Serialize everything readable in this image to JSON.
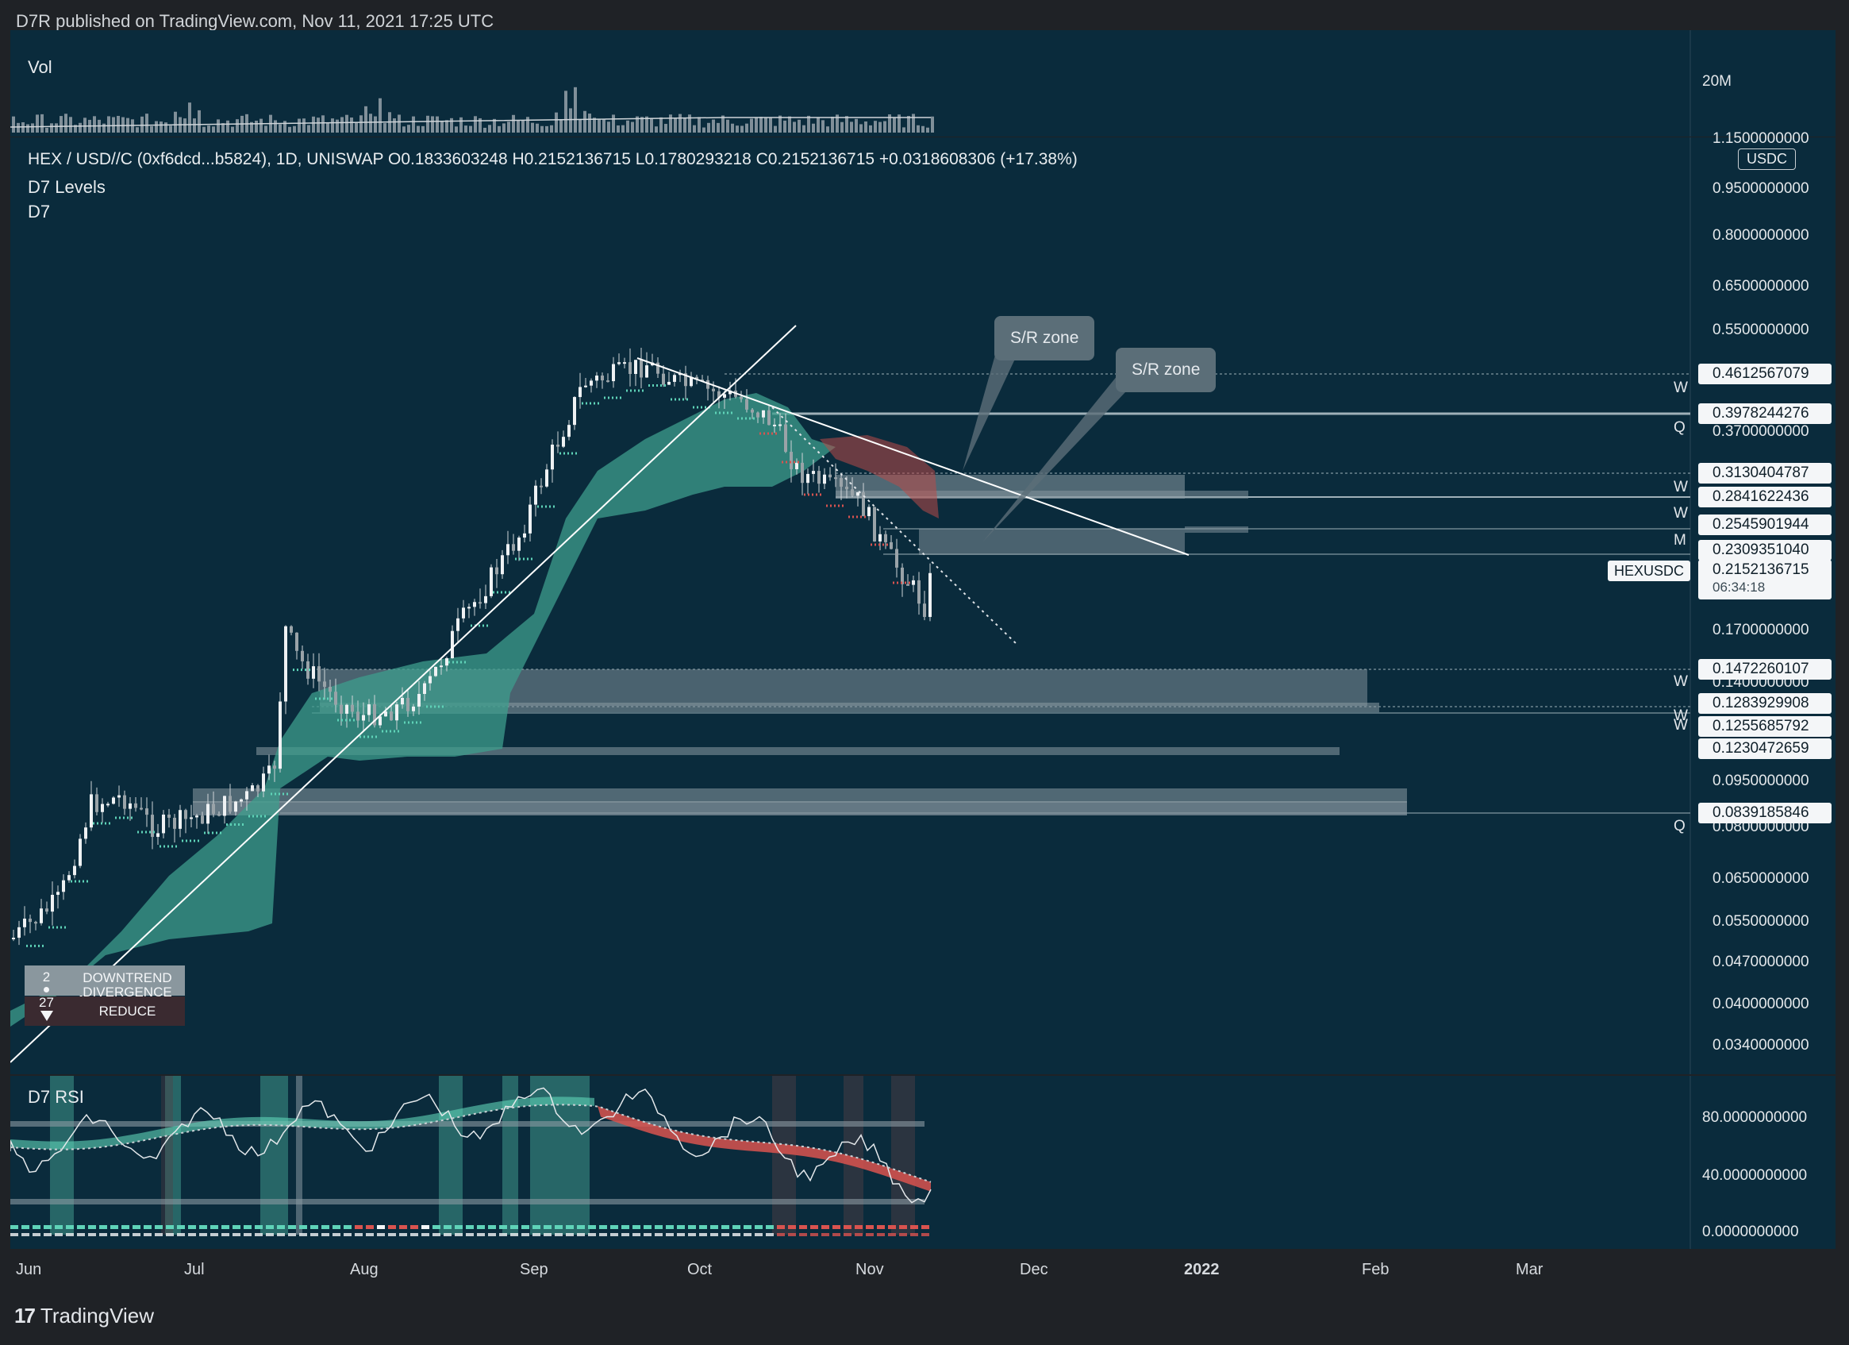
{
  "header": {
    "published": "D7R published on TradingView.com, Nov 11, 2021 17:25 UTC"
  },
  "volume_panel": {
    "title": "Vol",
    "scale_label": "20M"
  },
  "main": {
    "symbol_line": "HEX / USD//C (0xf6dcd...b5824), 1D, UNISWAP  O0.1833603248  H0.2152136715  L0.1780293218  C0.2152136715  +0.0318608306 (+17.38%)",
    "indicator_1": "D7 Levels",
    "indicator_2": "D7",
    "currency_badge": "USDC",
    "last_price": "0.2152136715",
    "countdown": "06:34:18",
    "ticker_badge": "HEXUSDC",
    "sr_zone_1": "S/R zone",
    "sr_zone_2": "S/R zone",
    "signal": {
      "count_top": "2",
      "count_bottom": "27",
      "label_top": "DOWNTREND DIVERGENCE",
      "label_bottom": "REDUCE"
    }
  },
  "rsi_panel": {
    "title": "D7 RSI"
  },
  "footer": {
    "brand": "TradingView"
  },
  "colors": {
    "panel_bg": "#0a2b3c",
    "bull": "#5fd3b8",
    "bear": "#d9534f",
    "cloud": "#3d9e8c",
    "zone": "#8a9aa2"
  },
  "chart_data": {
    "type": "candlestick",
    "x_ticks": [
      "Jun",
      "Jul",
      "Aug",
      "Sep",
      "Oct",
      "Nov",
      "Dec",
      "2022",
      "Feb",
      "Mar"
    ],
    "y_axis_labels": [
      "1.1500000000",
      "0.9500000000",
      "0.8000000000",
      "0.6500000000",
      "0.5500000000",
      "0.3700000000",
      "0.1700000000",
      "0.1400000000",
      "0.0950000000",
      "0.0800000000",
      "0.0650000000",
      "0.0550000000",
      "0.0470000000",
      "0.0400000000",
      "0.0340000000"
    ],
    "y_scale": "log",
    "levels": [
      {
        "value": "0.4612567079",
        "tag": "W"
      },
      {
        "value": "0.3978244276",
        "tag": "Q"
      },
      {
        "value": "0.3130404787",
        "tag": ""
      },
      {
        "value": "0.2841622436",
        "tag": "W"
      },
      {
        "value": "0.2545901944",
        "tag": "W"
      },
      {
        "value": "0.2309351040",
        "tag": "M"
      },
      {
        "value": "0.1472260107",
        "tag": "W"
      },
      {
        "value": "0.1283929908",
        "tag": "W"
      },
      {
        "value": "0.1255685792",
        "tag": "W"
      },
      {
        "value": "0.1230472659",
        "tag": ""
      },
      {
        "value": "0.0839185846",
        "tag": "Q"
      }
    ],
    "rsi_axis": [
      "80.0000000000",
      "40.0000000000",
      "0.0000000000"
    ],
    "volume_axis": [
      "20M"
    ]
  }
}
